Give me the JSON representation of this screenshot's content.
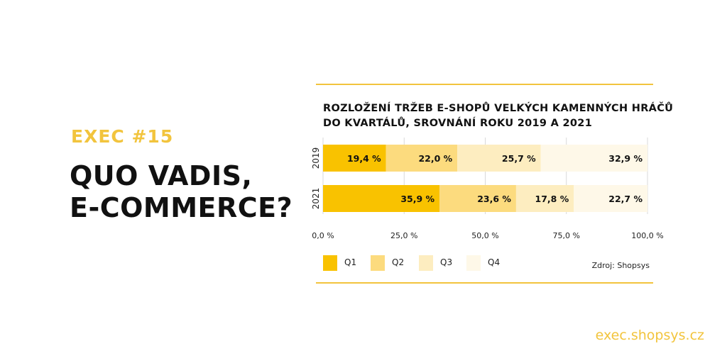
{
  "header": {
    "tag": "EXEC  #15",
    "headline_line1": "QUO VADIS,",
    "headline_line2": "E-COMMERCE?"
  },
  "footer": {
    "url": "exec.shopsys.cz"
  },
  "source": "Zdroj: Shopsys",
  "colors": {
    "accent": "#F2C43D",
    "q1": "#F9C200",
    "q2": "#FCDB7E",
    "q3": "#FDEDC0",
    "q4": "#FEF8E8"
  },
  "chart_data": {
    "type": "bar",
    "orientation": "horizontal",
    "stacked": true,
    "title_line1": "ROZLOŽENÍ TRŽEB E-SHOPŮ VELKÝCH KAMENNÝCH HRÁČŮ",
    "title_line2": "DO KVARTÁLŮ, SROVNÁNÍ ROKU 2019 A 2021",
    "categories": [
      "2019",
      "2021"
    ],
    "series": [
      {
        "name": "Q1",
        "values": [
          19.4,
          35.9
        ],
        "labels": [
          "19,4 %",
          "35,9 %"
        ]
      },
      {
        "name": "Q2",
        "values": [
          22.0,
          23.6
        ],
        "labels": [
          "22,0 %",
          "23,6 %"
        ]
      },
      {
        "name": "Q3",
        "values": [
          25.7,
          17.8
        ],
        "labels": [
          "25,7 %",
          "17,8 %"
        ]
      },
      {
        "name": "Q4",
        "values": [
          32.9,
          22.7
        ],
        "labels": [
          "32,9 %",
          "22,7 %"
        ]
      }
    ],
    "xlim": [
      0,
      100
    ],
    "xticks": [
      0,
      25,
      50,
      75,
      100
    ],
    "xtick_labels": [
      "0,0 %",
      "25,0 %",
      "50,0 %",
      "75,0 %",
      "100,0 %"
    ],
    "grid": true,
    "legend_position": "bottom"
  }
}
